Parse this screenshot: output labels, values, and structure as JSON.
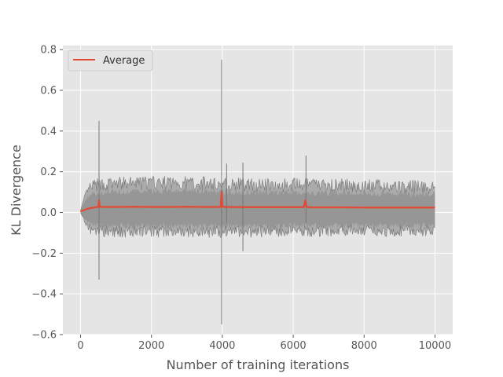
{
  "chart_data": {
    "type": "line",
    "title": "",
    "xlabel": "Number of training iterations",
    "ylabel": "KL Divergence",
    "xlim": [
      -500,
      10500
    ],
    "ylim": [
      -0.6,
      0.82
    ],
    "xticks": [
      0,
      2000,
      4000,
      6000,
      8000,
      10000
    ],
    "yticks": [
      -0.6,
      -0.4,
      -0.2,
      0.0,
      0.2,
      0.4,
      0.6,
      0.8
    ],
    "xtick_labels": [
      "0",
      "2000",
      "4000",
      "6000",
      "8000",
      "10000"
    ],
    "ytick_labels": [
      "−0.6",
      "−0.4",
      "−0.2",
      "0.0",
      "0.2",
      "0.4",
      "0.6",
      "0.8"
    ],
    "grid": true,
    "legend": {
      "position": "top-left",
      "entries": [
        "Average"
      ]
    },
    "series": [
      {
        "name": "Average",
        "color": "#E24A33",
        "x": [
          0,
          100,
          200,
          300,
          400,
          500,
          520,
          540,
          700,
          1000,
          1500,
          2000,
          2500,
          3000,
          3500,
          3950,
          3980,
          4000,
          4050,
          4500,
          5000,
          5500,
          6000,
          6300,
          6340,
          6380,
          6500,
          7000,
          7500,
          8000,
          8500,
          9000,
          9500,
          10000
        ],
        "values": [
          0.005,
          0.012,
          0.018,
          0.022,
          0.025,
          0.027,
          0.06,
          0.028,
          0.027,
          0.027,
          0.028,
          0.027,
          0.027,
          0.028,
          0.027,
          0.027,
          0.1,
          0.03,
          0.027,
          0.026,
          0.026,
          0.026,
          0.026,
          0.026,
          0.06,
          0.027,
          0.025,
          0.025,
          0.025,
          0.024,
          0.024,
          0.024,
          0.024,
          0.024
        ]
      }
    ],
    "individual_runs": {
      "color": "#777777",
      "band_x": [
        0,
        100,
        200,
        300,
        500,
        1000,
        2000,
        3000,
        4000,
        5000,
        6000,
        7000,
        8000,
        9000,
        10000
      ],
      "band_upper": [
        0.01,
        0.06,
        0.09,
        0.1,
        0.11,
        0.115,
        0.12,
        0.12,
        0.115,
        0.11,
        0.11,
        0.11,
        0.105,
        0.1,
        0.1
      ],
      "band_lower": [
        0.0,
        -0.03,
        -0.05,
        -0.06,
        -0.065,
        -0.07,
        -0.07,
        -0.07,
        -0.07,
        -0.07,
        -0.065,
        -0.065,
        -0.065,
        -0.065,
        -0.065
      ],
      "spikes": [
        {
          "x": 520,
          "y_low": -0.33,
          "y_high": 0.45
        },
        {
          "x": 3980,
          "y_low": -0.55,
          "y_high": 0.75
        },
        {
          "x": 4120,
          "y_low": -0.05,
          "y_high": 0.24
        },
        {
          "x": 4580,
          "y_low": -0.19,
          "y_high": 0.245
        },
        {
          "x": 6360,
          "y_low": -0.05,
          "y_high": 0.28
        }
      ]
    }
  }
}
